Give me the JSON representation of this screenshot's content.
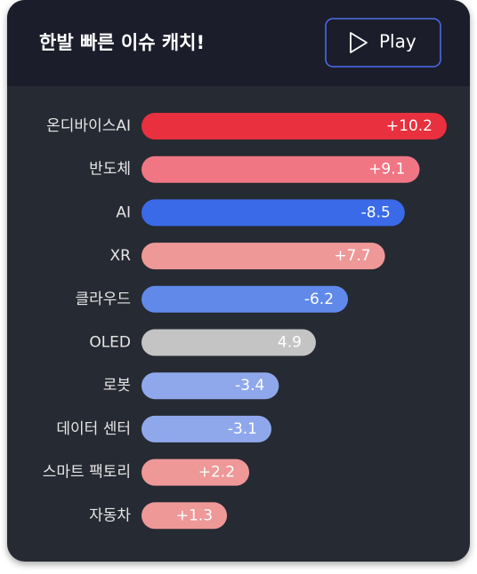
{
  "chart_data": {
    "type": "bar",
    "title": "한발 빠른 이슈 캐치!",
    "button": "Play",
    "categories": [
      "온디바이스AI",
      "반도체",
      "AI",
      "XR",
      "클라우드",
      "OLED",
      "로봇",
      "데이터 센터",
      "스마트 팩토리",
      "자동차"
    ],
    "values": [
      10.2,
      9.1,
      -8.5,
      7.7,
      -6.2,
      4.9,
      -3.4,
      -3.1,
      2.2,
      1.3
    ],
    "value_labels": [
      "+10.2",
      "+9.1",
      "-8.5",
      "+7.7",
      "-6.2",
      "4.9",
      "-3.4",
      "-3.1",
      "+2.2",
      "+1.3"
    ],
    "colors": [
      "#e8303e",
      "#f07684",
      "#3a6ae8",
      "#ef9898",
      "#6089ea",
      "#c4c4c4",
      "#8fa8ec",
      "#8fa8ec",
      "#ef9898",
      "#ef9898"
    ]
  }
}
